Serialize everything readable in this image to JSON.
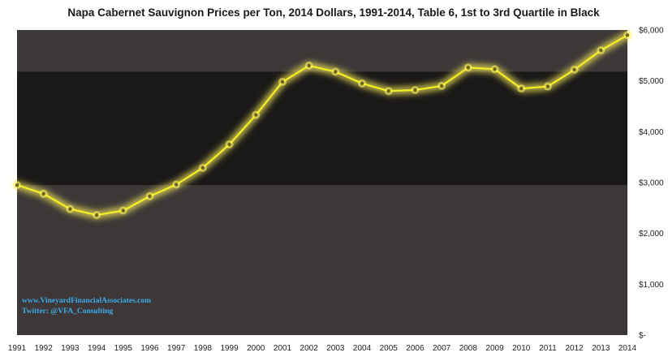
{
  "chart_data": {
    "type": "line",
    "title": "Napa Cabernet Sauvignon  Prices per Ton, 2014 Dollars, 1991-2014, Table 6, 1st to 3rd Quartile  in Black",
    "xlabel": "",
    "ylabel": "",
    "categories": [
      "1991",
      "1992",
      "1993",
      "1994",
      "1995",
      "1996",
      "1997",
      "1998",
      "1999",
      "2000",
      "2001",
      "2002",
      "2003",
      "2004",
      "2005",
      "2006",
      "2007",
      "2008",
      "2009",
      "2010",
      "2011",
      "2012",
      "2013",
      "2014"
    ],
    "series": [
      {
        "values": [
          2950,
          2780,
          2480,
          2360,
          2450,
          2730,
          2960,
          3290,
          3750,
          4330,
          4980,
          5300,
          5180,
          4950,
          4800,
          4820,
          4900,
          5260,
          5230,
          4850,
          4890,
          5220,
          5600,
          5900
        ]
      }
    ],
    "ylim": [
      0,
      6000
    ],
    "yticks": [
      0,
      1000,
      2000,
      3000,
      4000,
      5000,
      6000
    ],
    "ytick_labels": [
      "$-",
      "$1,000",
      "$2,000",
      "$3,000",
      "$4,000",
      "$5,000",
      "$6,000"
    ],
    "quartile_band": {
      "q1": 2950,
      "q3": 5180
    },
    "grid": false,
    "legend": "none",
    "y_axis_side": "right",
    "colors": {
      "plot_background": "#3d3837",
      "quartile_band": "#1b1918",
      "line": "#f2ef22",
      "glow": "#fff65c",
      "marker": "#6b6420"
    }
  },
  "credits": {
    "website": "www.VineyardFinancialAssociates.com",
    "twitter": "Twitter: @VFA_Consulting"
  }
}
